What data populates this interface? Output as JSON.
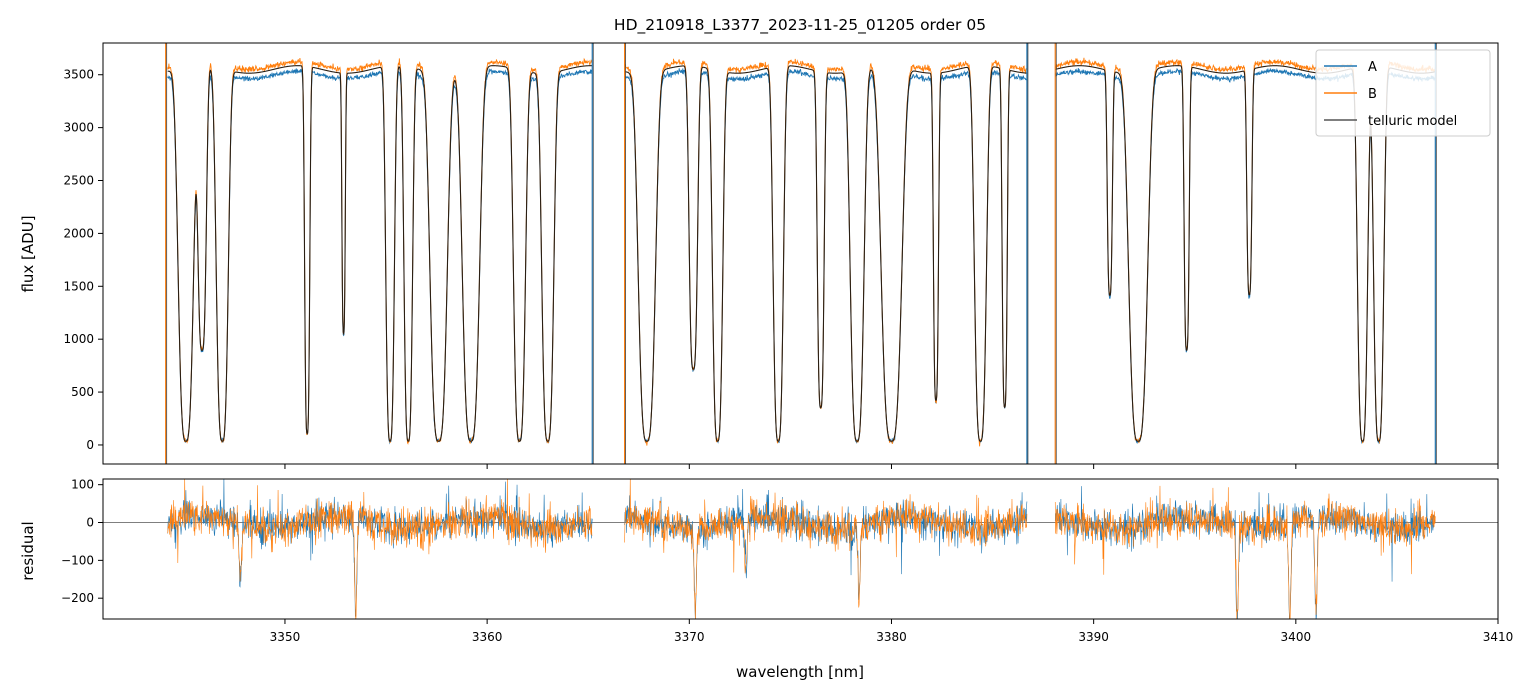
{
  "chart_data": [
    {
      "type": "line",
      "panel": "top",
      "title": "HD_210918_L3377_2023-11-25_01205  order 05",
      "xlabel": "",
      "ylabel": "flux [ADU]",
      "xlim": [
        3341,
        3410
      ],
      "ylim": [
        -180,
        3800
      ],
      "yticks": [
        0,
        500,
        1000,
        1500,
        2000,
        2500,
        3000,
        3500
      ],
      "xticks": [
        3350,
        3360,
        3370,
        3380,
        3390,
        3400,
        3410
      ],
      "grid": false,
      "legend": {
        "placement": "top-right",
        "entries": [
          {
            "label": "A",
            "color": "#1f77b4"
          },
          {
            "label": "B",
            "color": "#ff7f0e"
          },
          {
            "label": "telluric model",
            "color": "#555555"
          }
        ]
      },
      "data_segments": [
        [
          3344.2,
          3365.2
        ],
        [
          3366.8,
          3386.7
        ],
        [
          3388.1,
          3406.9
        ]
      ],
      "vertical_spikes": [
        3344.1,
        3365.2,
        3366.8,
        3386.7,
        3388.1,
        3406.9
      ],
      "continuum_level": 3550,
      "absorption_lines": [
        {
          "x": 3345.1,
          "depth": 0.99,
          "width": 0.45
        },
        {
          "x": 3345.9,
          "depth": 0.75,
          "width": 0.25
        },
        {
          "x": 3346.9,
          "depth": 0.99,
          "width": 0.35
        },
        {
          "x": 3351.1,
          "depth": 0.97,
          "width": 0.15
        },
        {
          "x": 3352.9,
          "depth": 0.7,
          "width": 0.1
        },
        {
          "x": 3355.2,
          "depth": 0.99,
          "width": 0.25
        },
        {
          "x": 3356.1,
          "depth": 0.99,
          "width": 0.25
        },
        {
          "x": 3357.6,
          "depth": 0.99,
          "width": 0.5
        },
        {
          "x": 3359.2,
          "depth": 0.99,
          "width": 0.5
        },
        {
          "x": 3361.6,
          "depth": 0.99,
          "width": 0.35
        },
        {
          "x": 3363.0,
          "depth": 0.99,
          "width": 0.35
        },
        {
          "x": 3367.9,
          "depth": 0.99,
          "width": 0.5
        },
        {
          "x": 3370.2,
          "depth": 0.8,
          "width": 0.25
        },
        {
          "x": 3371.4,
          "depth": 0.99,
          "width": 0.3
        },
        {
          "x": 3374.4,
          "depth": 0.99,
          "width": 0.3
        },
        {
          "x": 3376.5,
          "depth": 0.9,
          "width": 0.2
        },
        {
          "x": 3378.3,
          "depth": 0.99,
          "width": 0.4
        },
        {
          "x": 3380.0,
          "depth": 0.99,
          "width": 0.6
        },
        {
          "x": 3382.2,
          "depth": 0.88,
          "width": 0.15
        },
        {
          "x": 3384.4,
          "depth": 0.99,
          "width": 0.35
        },
        {
          "x": 3385.6,
          "depth": 0.9,
          "width": 0.15
        },
        {
          "x": 3390.8,
          "depth": 0.6,
          "width": 0.15
        },
        {
          "x": 3392.2,
          "depth": 0.99,
          "width": 0.55
        },
        {
          "x": 3394.6,
          "depth": 0.75,
          "width": 0.15
        },
        {
          "x": 3397.7,
          "depth": 0.6,
          "width": 0.15
        },
        {
          "x": 3403.3,
          "depth": 0.99,
          "width": 0.3
        },
        {
          "x": 3404.1,
          "depth": 0.99,
          "width": 0.3
        }
      ]
    },
    {
      "type": "line",
      "panel": "bottom",
      "title": "",
      "xlabel": "wavelength [nm]",
      "ylabel": "residual",
      "xlim": [
        3341,
        3410
      ],
      "ylim": [
        -255,
        115
      ],
      "yticks": [
        -200,
        -100,
        0,
        100
      ],
      "xticks": [
        3350,
        3360,
        3370,
        3380,
        3390,
        3400,
        3410
      ],
      "grid": false,
      "zero_line": true,
      "series": [
        {
          "name": "A",
          "color": "#1f77b4"
        },
        {
          "name": "B",
          "color": "#ff7f0e"
        }
      ],
      "residual_dips": [
        {
          "x": 3347.8,
          "value": -160
        },
        {
          "x": 3353.5,
          "value": -255
        },
        {
          "x": 3370.3,
          "value": -215
        },
        {
          "x": 3372.8,
          "value": -150
        },
        {
          "x": 3378.4,
          "value": -185
        },
        {
          "x": 3397.1,
          "value": -255
        },
        {
          "x": 3399.7,
          "value": -255
        },
        {
          "x": 3401.0,
          "value": -255
        }
      ]
    }
  ]
}
